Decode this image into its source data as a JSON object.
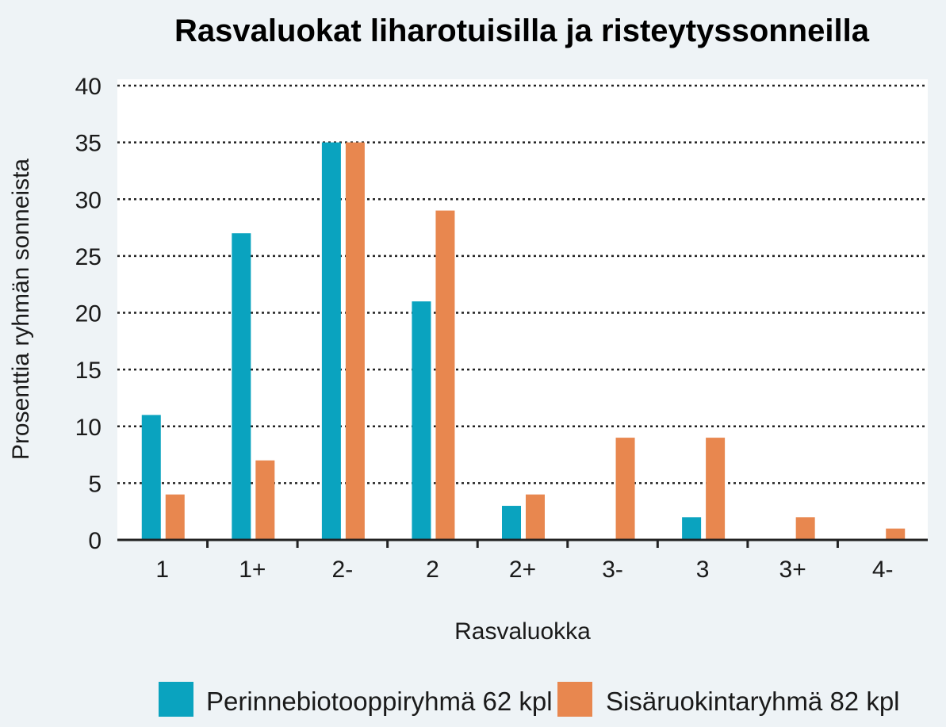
{
  "chart_data": {
    "type": "bar",
    "title": "Rasvaluokat liharotuisilla ja risteytyssonneilla",
    "xlabel": "Rasvaluokka",
    "ylabel": "Prosenttia ryhmän sonneista",
    "categories": [
      "1",
      "1+",
      "2-",
      "2",
      "2+",
      "3-",
      "3",
      "3+",
      "4-"
    ],
    "ylim": [
      0,
      40
    ],
    "yticks": [
      0,
      5,
      10,
      15,
      20,
      25,
      30,
      35,
      40
    ],
    "grid": true,
    "legend_position": "bottom",
    "series": [
      {
        "name": "Perinnebiotooppiryhmä 62 kpl",
        "color": "#0aa3bf",
        "values": [
          11,
          27,
          35,
          21,
          3,
          0,
          2,
          0,
          0
        ]
      },
      {
        "name": "Sisäruokintaryhmä 82 kpl",
        "color": "#e8874f",
        "values": [
          4,
          7,
          35,
          29,
          4,
          9,
          9,
          2,
          1
        ]
      }
    ]
  }
}
